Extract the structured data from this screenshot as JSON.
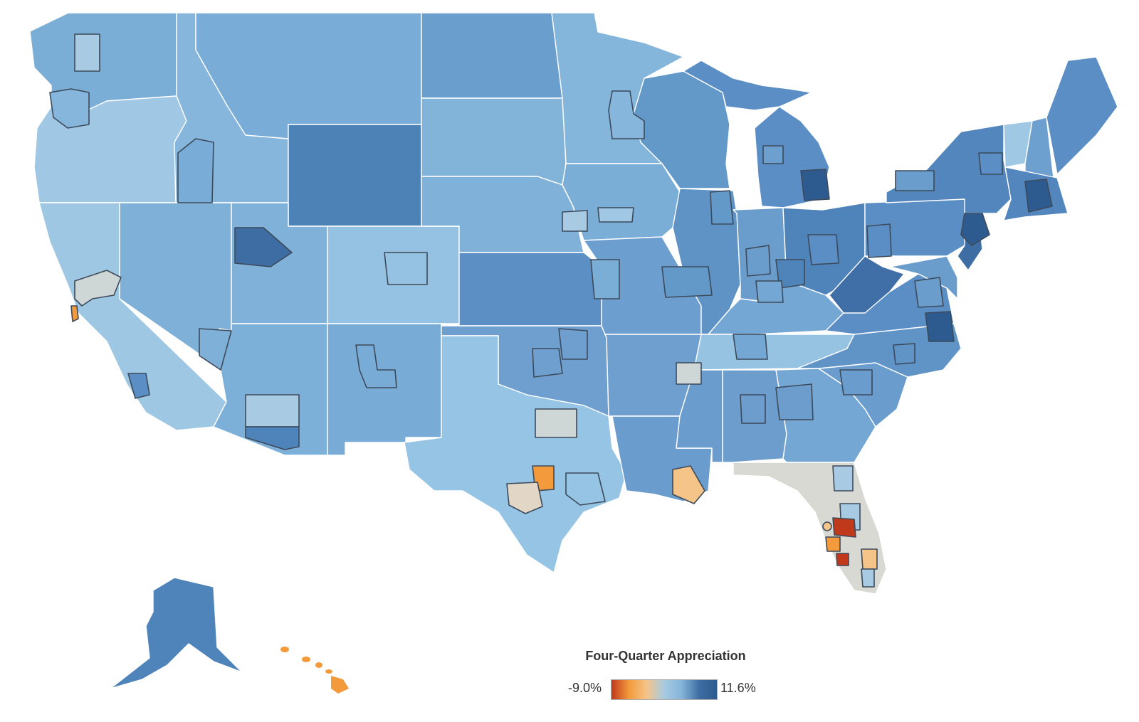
{
  "map": {
    "subject": "Four-quarter house price appreciation by state and metro area (choropleth)",
    "legend": {
      "title": "Four-Quarter Appreciation",
      "min_label": "-9.0%",
      "max_label": "11.6%",
      "min_value": -9.0,
      "max_value": 11.6
    },
    "colors": {
      "strong_decline": "#c0391b",
      "decline": "#f39a3d",
      "slight_decline": "#f5c488",
      "near_zero": "#d9d9d3",
      "low_growth": "#a7cbe2",
      "mid_growth": "#84b4d9",
      "high_growth": "#5b8ec4",
      "very_high_growth": "#3d6da3",
      "max_growth": "#2d5b90"
    }
  }
}
